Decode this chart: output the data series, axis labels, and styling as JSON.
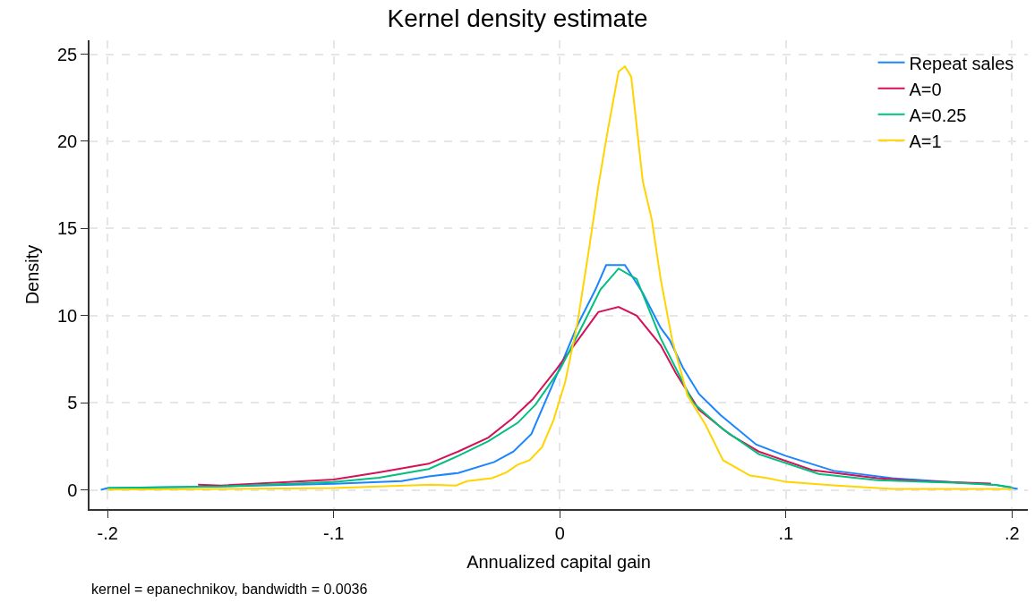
{
  "chart_data": {
    "type": "line",
    "title": "Kernel density estimate",
    "xlabel": "Annualized capital gain",
    "ylabel": "Density",
    "annotations": [
      "kernel = epanechnikov, bandwidth = 0.0036"
    ],
    "xlim": [
      -0.208,
      0.207
    ],
    "ylim": [
      -1.1,
      25.8
    ],
    "xticks": [
      {
        "value": -0.2,
        "label": "-.2"
      },
      {
        "value": -0.1,
        "label": "-.1"
      },
      0,
      {
        "value": 0.1,
        "label": ".1"
      },
      {
        "value": 0.2,
        "label": ".2"
      }
    ],
    "yticks": [
      0,
      5,
      10,
      15,
      20,
      25
    ],
    "grid": true,
    "legend": "top right",
    "line_style": "solid",
    "marker": "none",
    "series": [
      {
        "name": "Repeat sales",
        "color": "#1a85ff",
        "x": [
          -0.203,
          -0.2,
          -0.15,
          -0.1,
          -0.07,
          -0.058,
          -0.045,
          -0.029,
          -0.0205,
          -0.0126,
          0,
          0.008,
          0.0158,
          0.0205,
          0.0288,
          0.0367,
          0.0446,
          0.0486,
          0.0545,
          0.0616,
          0.071,
          0.0869,
          0.1,
          0.121,
          0.147,
          0.193,
          0.2025
        ],
        "values": [
          0,
          0.1,
          0.2,
          0.35,
          0.5,
          0.77,
          0.97,
          1.6,
          2.2,
          3.2,
          7.0,
          9.5,
          11.5,
          12.9,
          12.9,
          11.3,
          9.3,
          8.6,
          7.0,
          5.5,
          4.3,
          2.6,
          1.95,
          1.1,
          0.67,
          0.28,
          0.05
        ]
      },
      {
        "name": "A=0",
        "color": "#d41159",
        "x": [
          -0.16,
          -0.15,
          -0.12,
          -0.1,
          -0.08,
          -0.058,
          -0.045,
          -0.0316,
          -0.021,
          -0.012,
          -0.0016,
          0.008,
          0.017,
          0.026,
          0.034,
          0.0446,
          0.0513,
          0.0616,
          0.075,
          0.088,
          0.1117,
          0.1405,
          0.16,
          0.1907
        ],
        "values": [
          0.3,
          0.25,
          0.45,
          0.6,
          1.0,
          1.5,
          2.2,
          3.0,
          4.1,
          5.2,
          6.9,
          8.6,
          10.2,
          10.5,
          10.0,
          8.3,
          6.7,
          4.6,
          3.2,
          2.2,
          1.13,
          0.67,
          0.5,
          0.36
        ]
      },
      {
        "name": "A=0.25",
        "color": "#00bf7f",
        "x": [
          -0.2,
          -0.15,
          -0.1,
          -0.08,
          -0.058,
          -0.045,
          -0.0316,
          -0.0186,
          -0.0107,
          0,
          0.0103,
          0.018,
          0.026,
          0.034,
          0.0446,
          0.059,
          0.072,
          0.088,
          0.1145,
          0.1405,
          0.1737,
          0.193,
          0.2
        ],
        "values": [
          0.1,
          0.2,
          0.45,
          0.7,
          1.2,
          1.95,
          2.8,
          3.85,
          4.9,
          6.9,
          9.5,
          11.5,
          12.7,
          12.1,
          8.7,
          5.0,
          3.5,
          2.05,
          0.92,
          0.56,
          0.41,
          0.28,
          0.15
        ]
      },
      {
        "name": "A=1",
        "color": "#ffd400",
        "x": [
          -0.2,
          -0.15,
          -0.1,
          -0.057,
          -0.046,
          -0.041,
          -0.03,
          -0.0237,
          -0.0186,
          -0.0134,
          -0.0079,
          -0.0028,
          0.0024,
          0.0079,
          0.013,
          0.017,
          0.0209,
          0.026,
          0.0288,
          0.0316,
          0.0367,
          0.0407,
          0.0446,
          0.0497,
          0.0565,
          0.0644,
          0.0722,
          0.0841,
          0.092,
          0.1,
          0.121,
          0.147,
          0.2
        ],
        "values": [
          0.02,
          0.05,
          0.1,
          0.3,
          0.25,
          0.5,
          0.67,
          1.0,
          1.45,
          1.7,
          2.45,
          4.0,
          6.2,
          9.65,
          13.9,
          17.4,
          20.4,
          24.0,
          24.3,
          23.7,
          17.7,
          15.5,
          12.1,
          8.6,
          5.4,
          3.75,
          1.7,
          0.82,
          0.67,
          0.46,
          0.26,
          0.05,
          0.05
        ]
      }
    ]
  }
}
